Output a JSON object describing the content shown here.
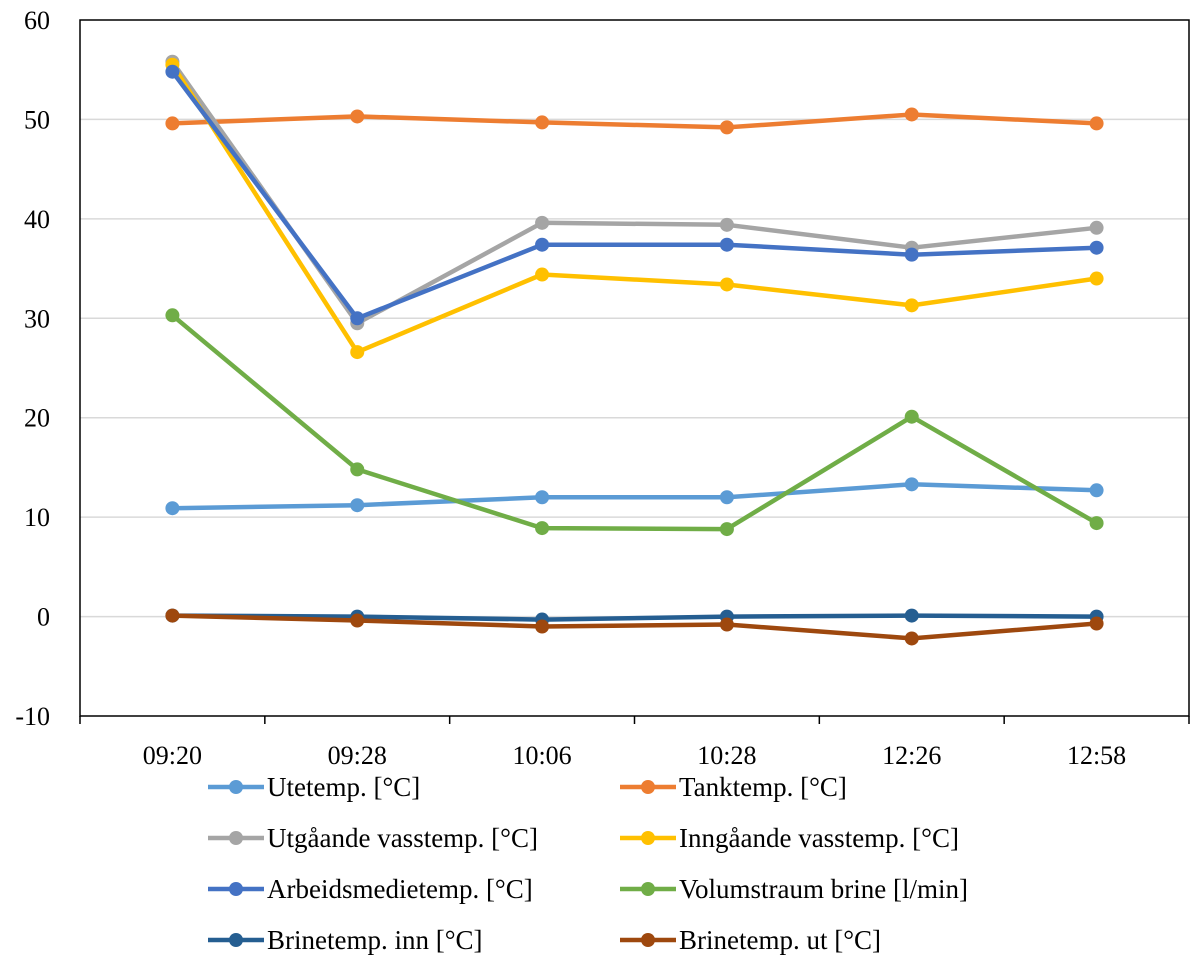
{
  "chart_data": {
    "type": "line",
    "title": "",
    "xlabel": "",
    "ylabel": "",
    "categories": [
      "09:20",
      "09:28",
      "10:06",
      "10:28",
      "12:26",
      "12:58"
    ],
    "ylim": [
      -10,
      60
    ],
    "yticks": [
      "-10",
      "0",
      "10",
      "20",
      "30",
      "40",
      "50",
      "60"
    ],
    "grid": "horizontal",
    "legend": "bottom",
    "series": [
      {
        "name": "Utetemp. [°C]",
        "color": "#5B9BD5",
        "values": [
          10.9,
          11.2,
          12.0,
          12.0,
          13.3,
          12.7
        ]
      },
      {
        "name": "Tanktemp. [°C]",
        "color": "#ED7D31",
        "values": [
          49.6,
          50.3,
          49.7,
          49.2,
          50.5,
          49.6
        ]
      },
      {
        "name": "Utgåande vasstemp. [°C]",
        "color": "#A5A5A5",
        "values": [
          55.8,
          29.5,
          39.6,
          39.4,
          37.1,
          39.1
        ]
      },
      {
        "name": "Inngåande vasstemp. [°C]",
        "color": "#FFC000",
        "values": [
          55.5,
          26.6,
          34.4,
          33.4,
          31.3,
          34.0
        ]
      },
      {
        "name": "Arbeidsmedietemp. [°C]",
        "color": "#4472C4",
        "values": [
          54.8,
          30.0,
          37.4,
          37.4,
          36.4,
          37.1
        ]
      },
      {
        "name": "Volumstraum brine [l/min]",
        "color": "#70AD47",
        "values": [
          30.3,
          14.8,
          8.9,
          8.8,
          20.1,
          9.4
        ]
      },
      {
        "name": "Brinetemp. inn  [°C]",
        "color": "#255E91",
        "values": [
          0.1,
          0.0,
          -0.3,
          0.0,
          0.1,
          0.0
        ]
      },
      {
        "name": "Brinetemp. ut  [°C]",
        "color": "#9E480E",
        "values": [
          0.1,
          -0.4,
          -1.0,
          -0.8,
          -2.2,
          -0.7
        ]
      }
    ]
  }
}
